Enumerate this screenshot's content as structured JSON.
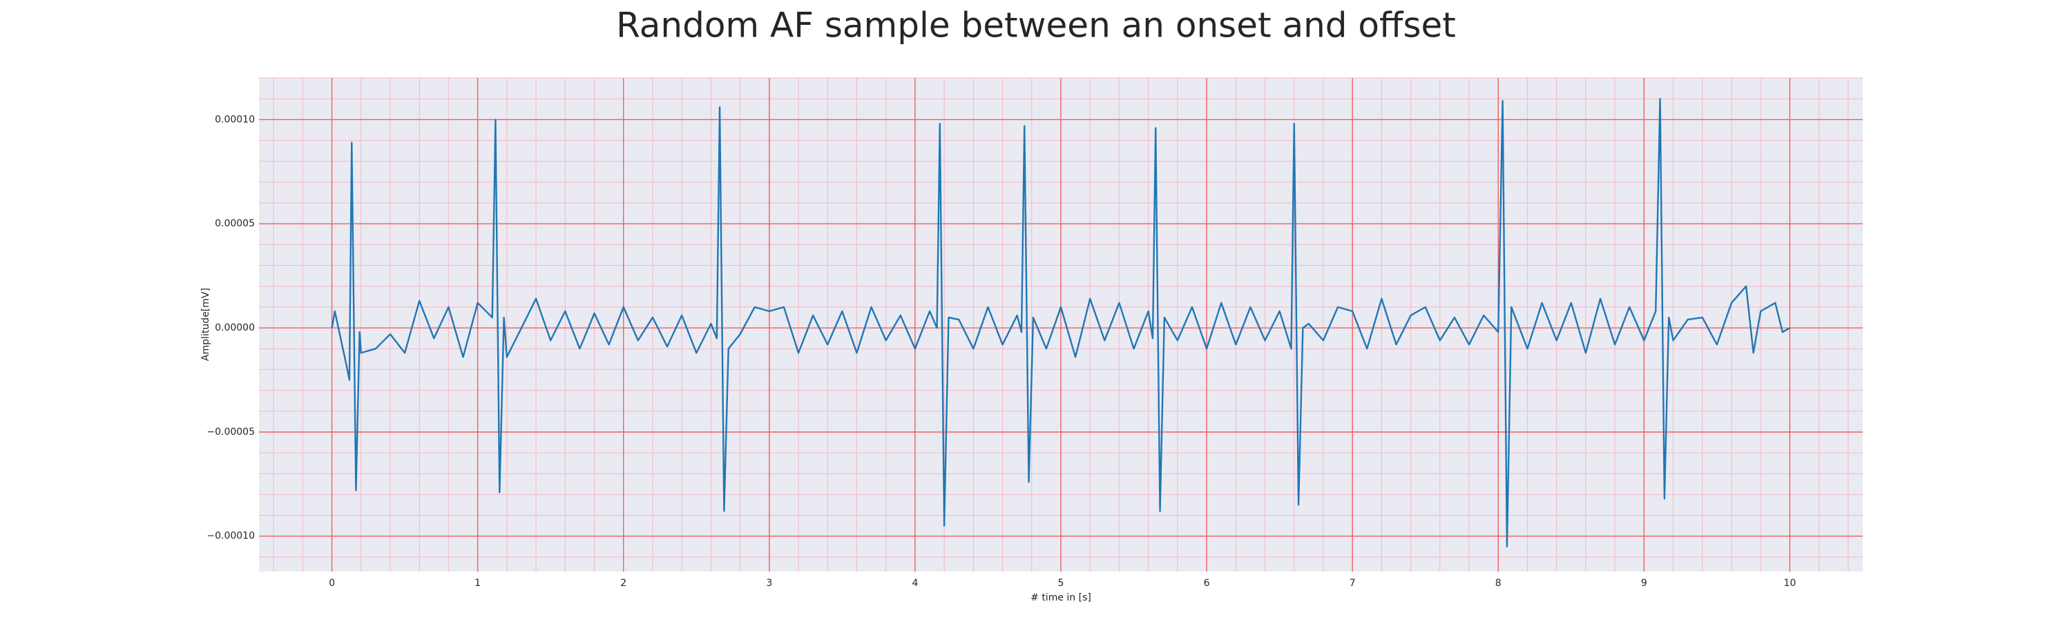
{
  "chart_data": {
    "type": "line",
    "title": "Random AF sample between an onset and offset",
    "xlabel": "# time in [s]",
    "ylabel": "Amplitude[mV]",
    "xlim": [
      -0.5,
      10.5
    ],
    "ylim": [
      -0.000117,
      0.00012
    ],
    "xticks": [
      0,
      1,
      2,
      3,
      4,
      5,
      6,
      7,
      8,
      9,
      10
    ],
    "yticks": [
      {
        "value": -0.0001,
        "label": "−0.00010"
      },
      {
        "value": -5e-05,
        "label": "−0.00005"
      },
      {
        "value": 0,
        "label": "0.00000"
      },
      {
        "value": 5e-05,
        "label": "0.00005"
      },
      {
        "value": 0.0001,
        "label": "0.00010"
      }
    ],
    "grid": true,
    "minor_grid": true,
    "background": "#eaeaf2",
    "grid_color": "#f06060",
    "minor_grid_color": "#f4b8c4",
    "x": [
      0,
      0.02,
      0.06,
      0.1,
      0.12,
      0.136,
      0.165,
      0.19,
      0.2,
      0.3,
      0.4,
      0.5,
      0.6,
      0.7,
      0.8,
      0.9,
      1.0,
      1.1,
      1.122,
      1.15,
      1.18,
      1.2,
      1.3,
      1.4,
      1.5,
      1.6,
      1.7,
      1.8,
      1.9,
      2.0,
      2.1,
      2.2,
      2.3,
      2.4,
      2.5,
      2.6,
      2.64,
      2.66,
      2.69,
      2.72,
      2.8,
      2.9,
      3.0,
      3.1,
      3.2,
      3.3,
      3.4,
      3.5,
      3.6,
      3.7,
      3.8,
      3.9,
      4.0,
      4.1,
      4.15,
      4.17,
      4.2,
      4.23,
      4.3,
      4.4,
      4.5,
      4.6,
      4.7,
      4.73,
      4.75,
      4.78,
      4.81,
      4.9,
      5.0,
      5.1,
      5.2,
      5.3,
      5.4,
      5.5,
      5.6,
      5.63,
      5.65,
      5.68,
      5.71,
      5.8,
      5.9,
      6.0,
      6.1,
      6.2,
      6.3,
      6.4,
      6.5,
      6.58,
      6.6,
      6.63,
      6.66,
      6.7,
      6.8,
      6.9,
      7.0,
      7.1,
      7.2,
      7.3,
      7.4,
      7.5,
      7.6,
      7.7,
      7.8,
      7.9,
      8.0,
      8.03,
      8.06,
      8.09,
      8.2,
      8.3,
      8.4,
      8.5,
      8.6,
      8.7,
      8.8,
      8.9,
      9.0,
      9.08,
      9.11,
      9.14,
      9.17,
      9.2,
      9.3,
      9.4,
      9.5,
      9.6,
      9.7,
      9.75,
      9.8,
      9.9,
      9.95,
      10.0
    ],
    "series": [
      {
        "color": "#1f77b4",
        "values": [
          0,
          8e-06,
          -5e-06,
          -1.8e-05,
          -2.5e-05,
          8.9e-05,
          -7.8e-05,
          -2e-06,
          -1.2e-05,
          -1e-05,
          -3e-06,
          -1.2e-05,
          1.3e-05,
          -5e-06,
          1e-05,
          -1.4e-05,
          1.2e-05,
          5e-06,
          0.0001,
          -7.9e-05,
          5e-06,
          -1.4e-05,
          0,
          1.4e-05,
          -6e-06,
          8e-06,
          -1e-05,
          7e-06,
          -8e-06,
          1e-05,
          -6e-06,
          5e-06,
          -9e-06,
          6e-06,
          -1.2e-05,
          2e-06,
          -5e-06,
          0.000106,
          -8.8e-05,
          -1e-05,
          -3e-06,
          1e-05,
          8e-06,
          1e-05,
          -1.2e-05,
          6e-06,
          -8e-06,
          8e-06,
          -1.2e-05,
          1e-05,
          -6e-06,
          6e-06,
          -1e-05,
          8e-06,
          0,
          9.8e-05,
          -9.5e-05,
          5e-06,
          4e-06,
          -1e-05,
          1e-05,
          -8e-06,
          6e-06,
          -2e-06,
          9.7e-05,
          -7.4e-05,
          5e-06,
          -1e-05,
          1e-05,
          -1.4e-05,
          1.4e-05,
          -6e-06,
          1.2e-05,
          -1e-05,
          8e-06,
          -5e-06,
          9.6e-05,
          -8.8e-05,
          5e-06,
          -6e-06,
          1e-05,
          -1e-05,
          1.2e-05,
          -8e-06,
          1e-05,
          -6e-06,
          8e-06,
          -1e-05,
          9.8e-05,
          -8.5e-05,
          0,
          2e-06,
          -6e-06,
          1e-05,
          8e-06,
          -1e-05,
          1.4e-05,
          -8e-06,
          6e-06,
          1e-05,
          -6e-06,
          5e-06,
          -8e-06,
          6e-06,
          -2e-06,
          0.000109,
          -0.000105,
          1e-05,
          -1e-05,
          1.2e-05,
          -6e-06,
          1.2e-05,
          -1.2e-05,
          1.4e-05,
          -8e-06,
          1e-05,
          -6e-06,
          8e-06,
          0.00011,
          -8.2e-05,
          5e-06,
          -6e-06,
          4e-06,
          5e-06,
          -8e-06,
          1.2e-05,
          2e-05,
          -1.2e-05,
          8e-06,
          1.2e-05,
          -2e-06,
          0
        ]
      }
    ]
  }
}
